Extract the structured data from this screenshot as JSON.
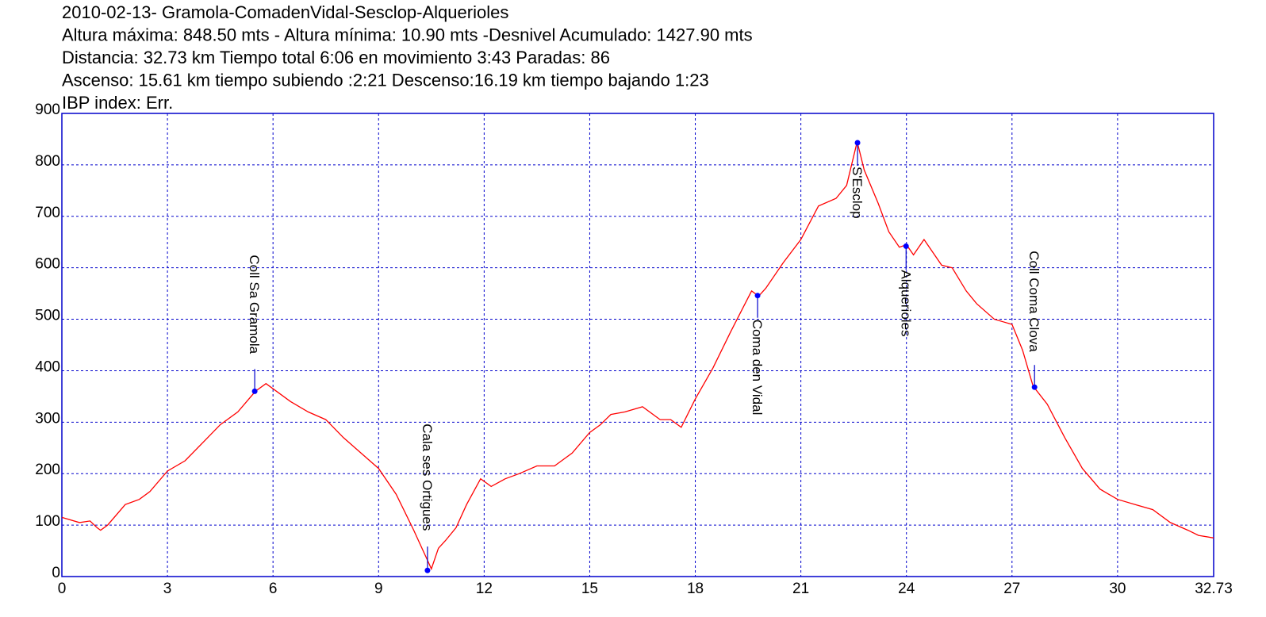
{
  "chart_data": {
    "type": "line",
    "header_lines": [
      "2010-02-13- Gramola-ComadenVidal-Sesclop-Alquerioles",
      "Altura máxima: 848.50 mts - Altura mínima: 10.90 mts -Desnivel Acumulado: 1427.90 mts",
      "Distancia: 32.73 km  Tiempo total 6:06  en movimiento 3:43 Paradas: 86",
      "Ascenso: 15.61 km  tiempo subiendo :2:21  Descenso:16.19 km tiempo bajando 1:23",
      "IBP index: Err."
    ],
    "x": [
      0,
      0.5,
      0.8,
      1.0,
      1.1,
      1.3,
      1.8,
      2.2,
      2.5,
      3,
      3.5,
      4,
      4.5,
      5,
      5.5,
      5.8,
      6,
      6.5,
      7,
      7.5,
      8,
      8.5,
      9,
      9.5,
      10,
      10.2,
      10.4,
      10.5,
      10.7,
      10.9,
      11.2,
      11.5,
      11.9,
      12.2,
      12.6,
      13,
      13.5,
      14,
      14.5,
      15,
      15.3,
      15.6,
      16,
      16.5,
      17,
      17.3,
      17.6,
      18,
      18.5,
      19,
      19.3,
      19.6,
      19.8,
      20,
      20.5,
      21,
      21.5,
      22,
      22.3,
      22.6,
      22.8,
      23.2,
      23.5,
      23.8,
      24,
      24.2,
      24.5,
      25,
      25.3,
      25.7,
      26,
      26.5,
      27,
      27.3,
      27.6,
      28,
      28.5,
      29,
      29.5,
      30,
      30.5,
      31,
      31.5,
      32,
      32.3,
      32.73
    ],
    "values": [
      115,
      105,
      108,
      95,
      90,
      100,
      140,
      150,
      165,
      205,
      225,
      260,
      295,
      320,
      360,
      375,
      365,
      340,
      320,
      305,
      270,
      240,
      210,
      160,
      90,
      60,
      30,
      15,
      55,
      70,
      95,
      140,
      190,
      175,
      190,
      200,
      215,
      215,
      240,
      280,
      295,
      315,
      320,
      330,
      305,
      305,
      290,
      345,
      405,
      475,
      515,
      555,
      545,
      560,
      610,
      655,
      720,
      735,
      760,
      845,
      790,
      725,
      670,
      640,
      645,
      625,
      655,
      605,
      600,
      555,
      530,
      500,
      490,
      440,
      370,
      335,
      270,
      210,
      170,
      150,
      140,
      130,
      105,
      90,
      80,
      75
    ],
    "color": "#ff0000",
    "annotations": [
      {
        "label": "Coll Sa Gramola",
        "x": 5.48,
        "y": 360
      },
      {
        "label": "Cala ses Ortigues",
        "x": 10.39,
        "y": 12
      },
      {
        "label": "Coma den Vidal",
        "x": 19.77,
        "y": 546
      },
      {
        "label": "S'Esclop",
        "x": 22.61,
        "y": 843
      },
      {
        "label": "Alquerioles",
        "x": 23.99,
        "y": 642
      },
      {
        "label": "Coll Coma Clova",
        "x": 27.64,
        "y": 368
      }
    ],
    "xlim": [
      0,
      32.73
    ],
    "xticks": [
      0,
      3,
      6,
      9,
      12,
      15,
      18,
      21,
      24,
      27,
      30,
      32.73
    ],
    "ylim": [
      0,
      900
    ],
    "yticks": [
      0,
      100,
      200,
      300,
      400,
      500,
      600,
      700,
      800,
      900
    ],
    "grid": true
  }
}
